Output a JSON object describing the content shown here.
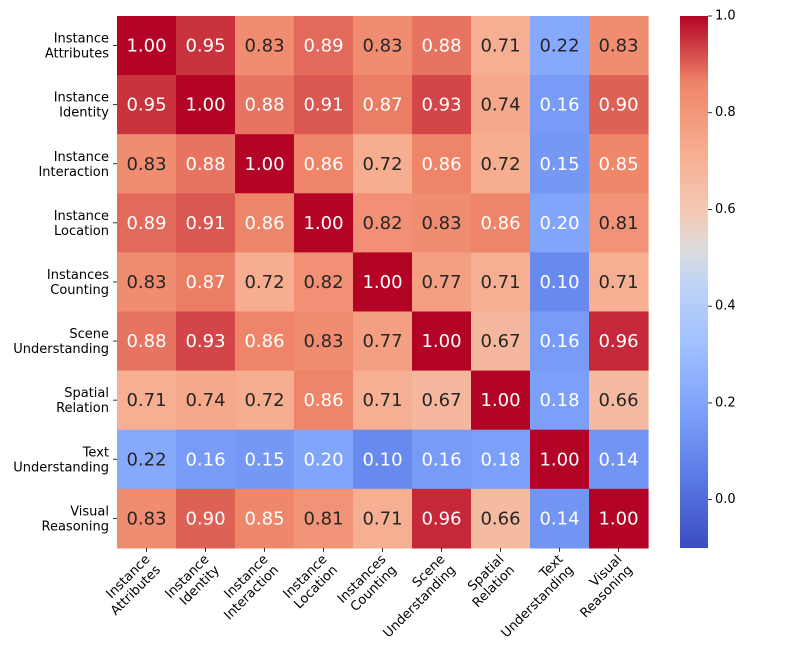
{
  "chart_data": {
    "type": "heatmap",
    "title": "",
    "labels": [
      "Instance Attributes",
      "Instance Identity",
      "Instance Interaction",
      "Instance Location",
      "Instances Counting",
      "Scene Understanding",
      "Spatial Relation",
      "Text Understanding",
      "Visual Reasoning"
    ],
    "label_lines": [
      [
        "Instance",
        "Attributes"
      ],
      [
        "Instance",
        "Identity"
      ],
      [
        "Instance",
        "Interaction"
      ],
      [
        "Instance",
        "Location"
      ],
      [
        "Instances",
        "Counting"
      ],
      [
        "Scene",
        "Understanding"
      ],
      [
        "Spatial",
        "Relation"
      ],
      [
        "Text",
        "Understanding"
      ],
      [
        "Visual",
        "Reasoning"
      ]
    ],
    "matrix": [
      [
        1.0,
        0.95,
        0.83,
        0.89,
        0.83,
        0.88,
        0.71,
        0.22,
        0.83
      ],
      [
        0.95,
        1.0,
        0.88,
        0.91,
        0.87,
        0.93,
        0.74,
        0.16,
        0.9
      ],
      [
        0.83,
        0.88,
        1.0,
        0.86,
        0.72,
        0.86,
        0.72,
        0.15,
        0.85
      ],
      [
        0.89,
        0.91,
        0.86,
        1.0,
        0.82,
        0.83,
        0.86,
        0.2,
        0.81
      ],
      [
        0.83,
        0.87,
        0.72,
        0.82,
        1.0,
        0.77,
        0.71,
        0.1,
        0.71
      ],
      [
        0.88,
        0.93,
        0.86,
        0.83,
        0.77,
        1.0,
        0.67,
        0.16,
        0.96
      ],
      [
        0.71,
        0.74,
        0.72,
        0.86,
        0.71,
        0.67,
        1.0,
        0.18,
        0.66
      ],
      [
        0.22,
        0.16,
        0.15,
        0.2,
        0.1,
        0.16,
        0.18,
        1.0,
        0.14
      ],
      [
        0.83,
        0.9,
        0.85,
        0.81,
        0.71,
        0.96,
        0.66,
        0.14,
        1.0
      ]
    ],
    "colorbar": {
      "range": [
        -0.1,
        1.0
      ],
      "ticks": [
        0.0,
        0.2,
        0.4,
        0.6,
        0.8,
        1.0
      ],
      "tick_labels": [
        "0.0",
        "0.2",
        "0.4",
        "0.6",
        "0.8",
        "1.0"
      ],
      "colormap": "coolwarm"
    },
    "xlabel": "",
    "ylabel": "",
    "value_format": "2 decimals",
    "light_text_color": "#ffffff",
    "dark_text_color": "#262626"
  }
}
